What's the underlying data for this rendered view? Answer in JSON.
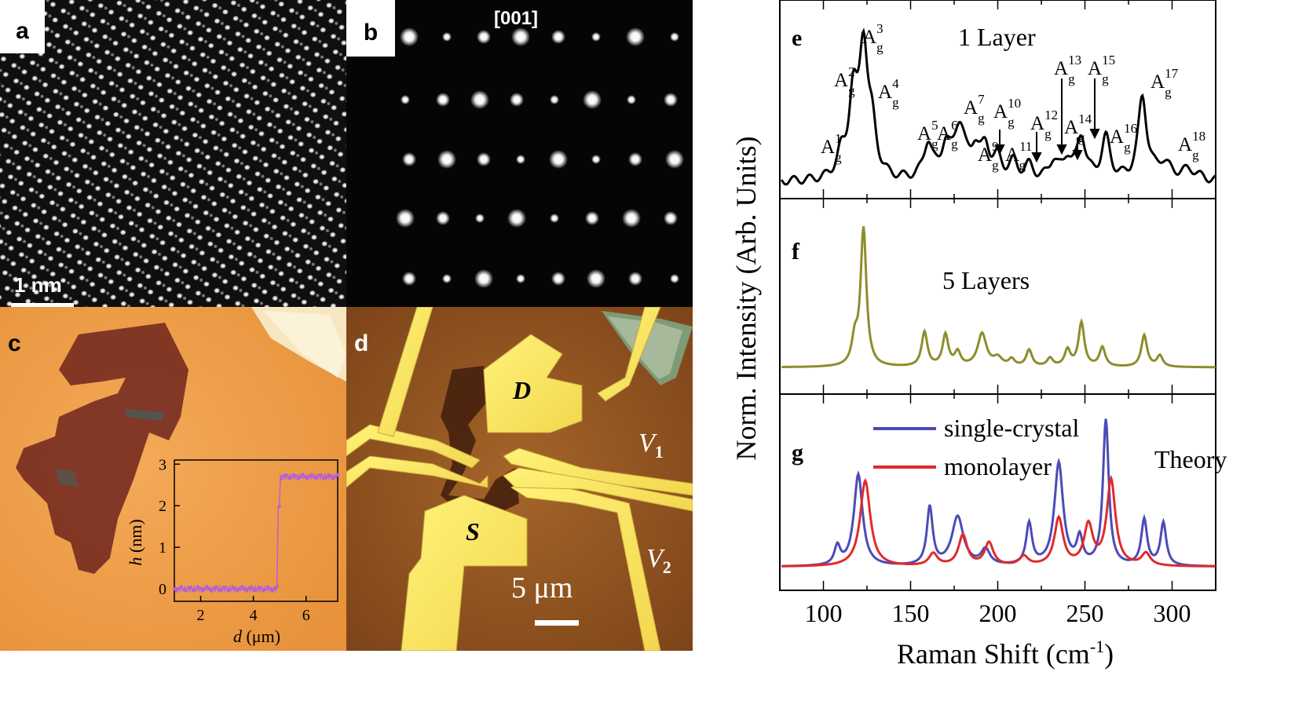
{
  "panels": {
    "a": {
      "label": "a",
      "scale_bar": "1 nm"
    },
    "b": {
      "label": "b",
      "zone_axis": "[001]"
    },
    "c": {
      "label": "c",
      "inset": {
        "ylabel_var": "h",
        "ylabel_unit": " (nm)",
        "xlabel_var": "d",
        "xlabel_unit": " (μm)",
        "xticks": [
          "2",
          "4",
          "6"
        ],
        "yticks": [
          "0",
          "1",
          "2",
          "3"
        ]
      }
    },
    "d": {
      "label": "d",
      "drain": "D",
      "source": "S",
      "v1": "V",
      "v1_sub": "1",
      "v2": "V",
      "v2_sub": "2",
      "scale_bar": "5 μm"
    },
    "e": {
      "label": "e",
      "title": "1 Layer"
    },
    "f": {
      "label": "f",
      "title": "5 Layers"
    },
    "g": {
      "label": "g",
      "title": "Theory"
    }
  },
  "axes": {
    "ylabel": "Norm. Intensity (Arb. Units)",
    "xlabel_main": "Raman Shift (cm",
    "xlabel_sup": "-1",
    "xlabel_close": ")",
    "xticks": [
      "100",
      "150",
      "200",
      "250",
      "300"
    ]
  },
  "peak_labels": [
    {
      "base": "A",
      "sub": "g",
      "sup": "1"
    },
    {
      "base": "A",
      "sub": "g",
      "sup": "2"
    },
    {
      "base": "A",
      "sub": "g",
      "sup": "3"
    },
    {
      "base": "A",
      "sub": "g",
      "sup": "4"
    },
    {
      "base": "A",
      "sub": "g",
      "sup": "5"
    },
    {
      "base": "A",
      "sub": "g",
      "sup": "6"
    },
    {
      "base": "A",
      "sub": "g",
      "sup": "7"
    },
    {
      "base": "A",
      "sub": "g",
      "sup": "9"
    },
    {
      "base": "A",
      "sub": "g",
      "sup": "10"
    },
    {
      "base": "A",
      "sub": "g",
      "sup": "11"
    },
    {
      "base": "A",
      "sub": "g",
      "sup": "12"
    },
    {
      "base": "A",
      "sub": "g",
      "sup": "13"
    },
    {
      "base": "A",
      "sub": "g",
      "sup": "14"
    },
    {
      "base": "A",
      "sub": "g",
      "sup": "15"
    },
    {
      "base": "A",
      "sub": "g",
      "sup": "16"
    },
    {
      "base": "A",
      "sub": "g",
      "sup": "17"
    },
    {
      "base": "A",
      "sub": "g",
      "sup": "18"
    }
  ],
  "legend": [
    {
      "name": "single-crystal",
      "color": "#4b4bb8"
    },
    {
      "name": "monolayer",
      "color": "#e02b2b"
    }
  ],
  "chart_data": [
    {
      "type": "line",
      "title": "1 Layer",
      "xlabel": "Raman Shift (cm-1)",
      "ylabel": "Norm. Intensity (Arb. Units)",
      "xlim": [
        75,
        325
      ],
      "series": [
        {
          "name": "1 Layer",
          "color": "#000000",
          "peaks": [
            [
              110,
              0.15,
              3
            ],
            [
              117,
              0.58,
              3
            ],
            [
              123,
              0.95,
              3
            ],
            [
              128,
              0.3,
              3
            ],
            [
              160,
              0.27,
              3
            ],
            [
              170,
              0.22,
              3
            ],
            [
              178,
              0.4,
              4
            ],
            [
              187,
              0.2,
              3
            ],
            [
              193,
              0.22,
              3
            ],
            [
              200,
              0.14,
              3
            ],
            [
              209,
              0.12,
              3
            ],
            [
              218,
              0.1,
              3
            ],
            [
              232,
              0.14,
              3
            ],
            [
              240,
              0.15,
              3
            ],
            [
              248,
              0.32,
              3
            ],
            [
              262,
              0.31,
              3
            ],
            [
              283,
              0.62,
              3
            ],
            [
              295,
              0.12,
              5
            ],
            [
              310,
              0.08,
              6
            ]
          ]
        }
      ]
    },
    {
      "type": "line",
      "title": "5 Layers",
      "xlabel": "Raman Shift (cm-1)",
      "ylabel": "Norm. Intensity (Arb. Units)",
      "xlim": [
        75,
        325
      ],
      "series": [
        {
          "name": "5 Layers",
          "color": "#8d8d2c",
          "peaks": [
            [
              118,
              0.18,
              2
            ],
            [
              123,
              1.0,
              2
            ],
            [
              158,
              0.25,
              2
            ],
            [
              170,
              0.23,
              2
            ],
            [
              177,
              0.1,
              2
            ],
            [
              191,
              0.24,
              3
            ],
            [
              200,
              0.06,
              3
            ],
            [
              208,
              0.05,
              2
            ],
            [
              218,
              0.12,
              2
            ],
            [
              230,
              0.06,
              2
            ],
            [
              240,
              0.12,
              2
            ],
            [
              248,
              0.32,
              2
            ],
            [
              260,
              0.14,
              2
            ],
            [
              284,
              0.23,
              2
            ],
            [
              293,
              0.08,
              2
            ]
          ]
        }
      ]
    },
    {
      "type": "line",
      "title": "Theory",
      "xlabel": "Raman Shift (cm-1)",
      "ylabel": "Norm. Intensity (Arb. Units)",
      "xlim": [
        75,
        325
      ],
      "series": [
        {
          "name": "single-crystal",
          "color": "#4b4bb8",
          "peaks": [
            [
              108,
              0.12,
              2
            ],
            [
              120,
              0.6,
              3
            ],
            [
              161,
              0.38,
              2
            ],
            [
              177,
              0.32,
              4
            ],
            [
              193,
              0.1,
              3
            ],
            [
              218,
              0.27,
              2
            ],
            [
              235,
              0.67,
              3
            ],
            [
              247,
              0.17,
              2
            ],
            [
              262,
              0.95,
              2
            ],
            [
              284,
              0.3,
              2
            ],
            [
              295,
              0.28,
              2
            ]
          ]
        },
        {
          "name": "monolayer",
          "color": "#e02b2b",
          "peaks": [
            [
              124,
              0.56,
              3.5
            ],
            [
              163,
              0.08,
              3
            ],
            [
              180,
              0.2,
              3
            ],
            [
              195,
              0.15,
              3
            ],
            [
              215,
              0.06,
              3
            ],
            [
              235,
              0.31,
              3
            ],
            [
              252,
              0.26,
              3
            ],
            [
              265,
              0.56,
              3
            ],
            [
              285,
              0.08,
              3
            ]
          ]
        }
      ]
    }
  ]
}
